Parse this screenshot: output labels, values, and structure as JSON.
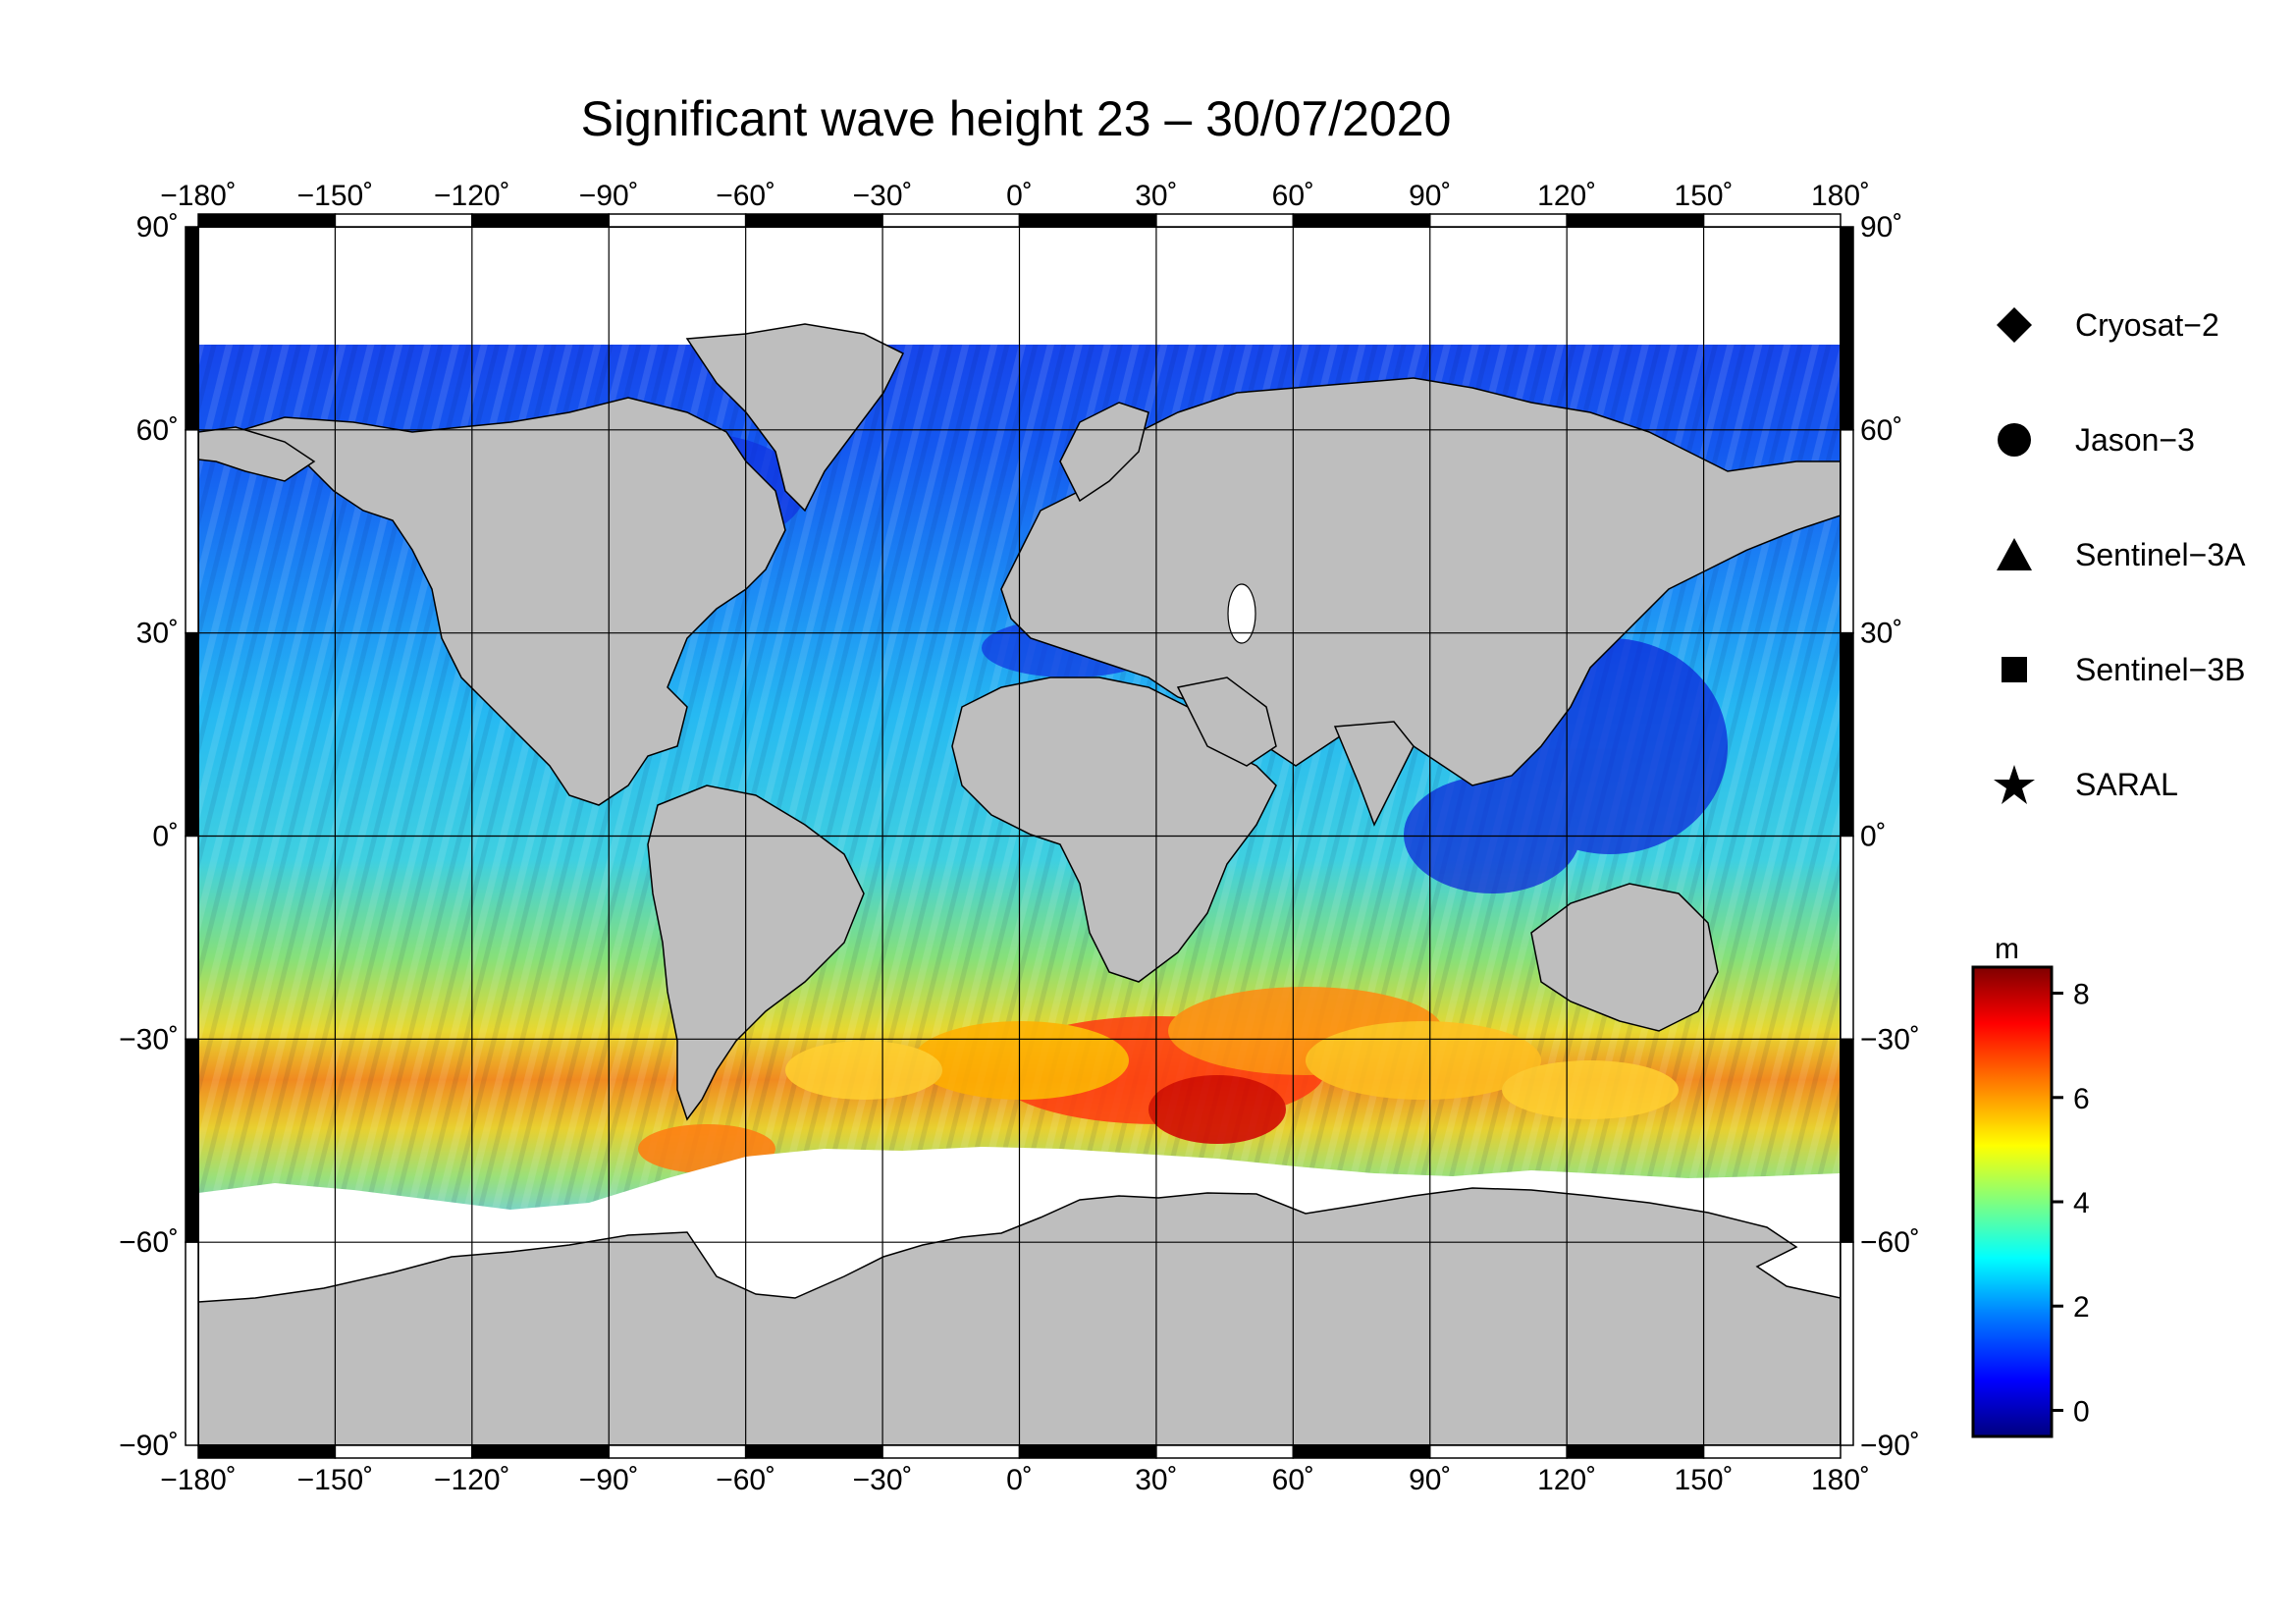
{
  "title": "Significant wave height 23 – 30/07/2020",
  "map": {
    "lon_ticks": [
      "−180˚",
      "−150˚",
      "−120˚",
      "−90˚",
      "−60˚",
      "−30˚",
      "0˚",
      "30˚",
      "60˚",
      "90˚",
      "120˚",
      "150˚",
      "180˚"
    ],
    "lat_ticks": [
      "90˚",
      "60˚",
      "30˚",
      "0˚",
      "−30˚",
      "−60˚",
      "−90˚"
    ],
    "land_color": "#bebebe",
    "ice_color": "#ffffff",
    "frame_color": "#000000"
  },
  "legend": {
    "items": [
      {
        "symbol": "diamond",
        "label": "Cryosat−2"
      },
      {
        "symbol": "circle",
        "label": "Jason−3"
      },
      {
        "symbol": "triangle",
        "label": "Sentinel−3A"
      },
      {
        "symbol": "square",
        "label": "Sentinel−3B"
      },
      {
        "symbol": "star",
        "label": "SARAL"
      }
    ]
  },
  "colorbar": {
    "unit": "m",
    "ticks": [
      "0",
      "2",
      "4",
      "6",
      "8"
    ],
    "range": [
      -0.5,
      8.5
    ],
    "colors": [
      "#00007f",
      "#0000ff",
      "#007fff",
      "#00ffff",
      "#7fff7f",
      "#ffff00",
      "#ff7f00",
      "#ff0000",
      "#7f0000"
    ]
  }
}
